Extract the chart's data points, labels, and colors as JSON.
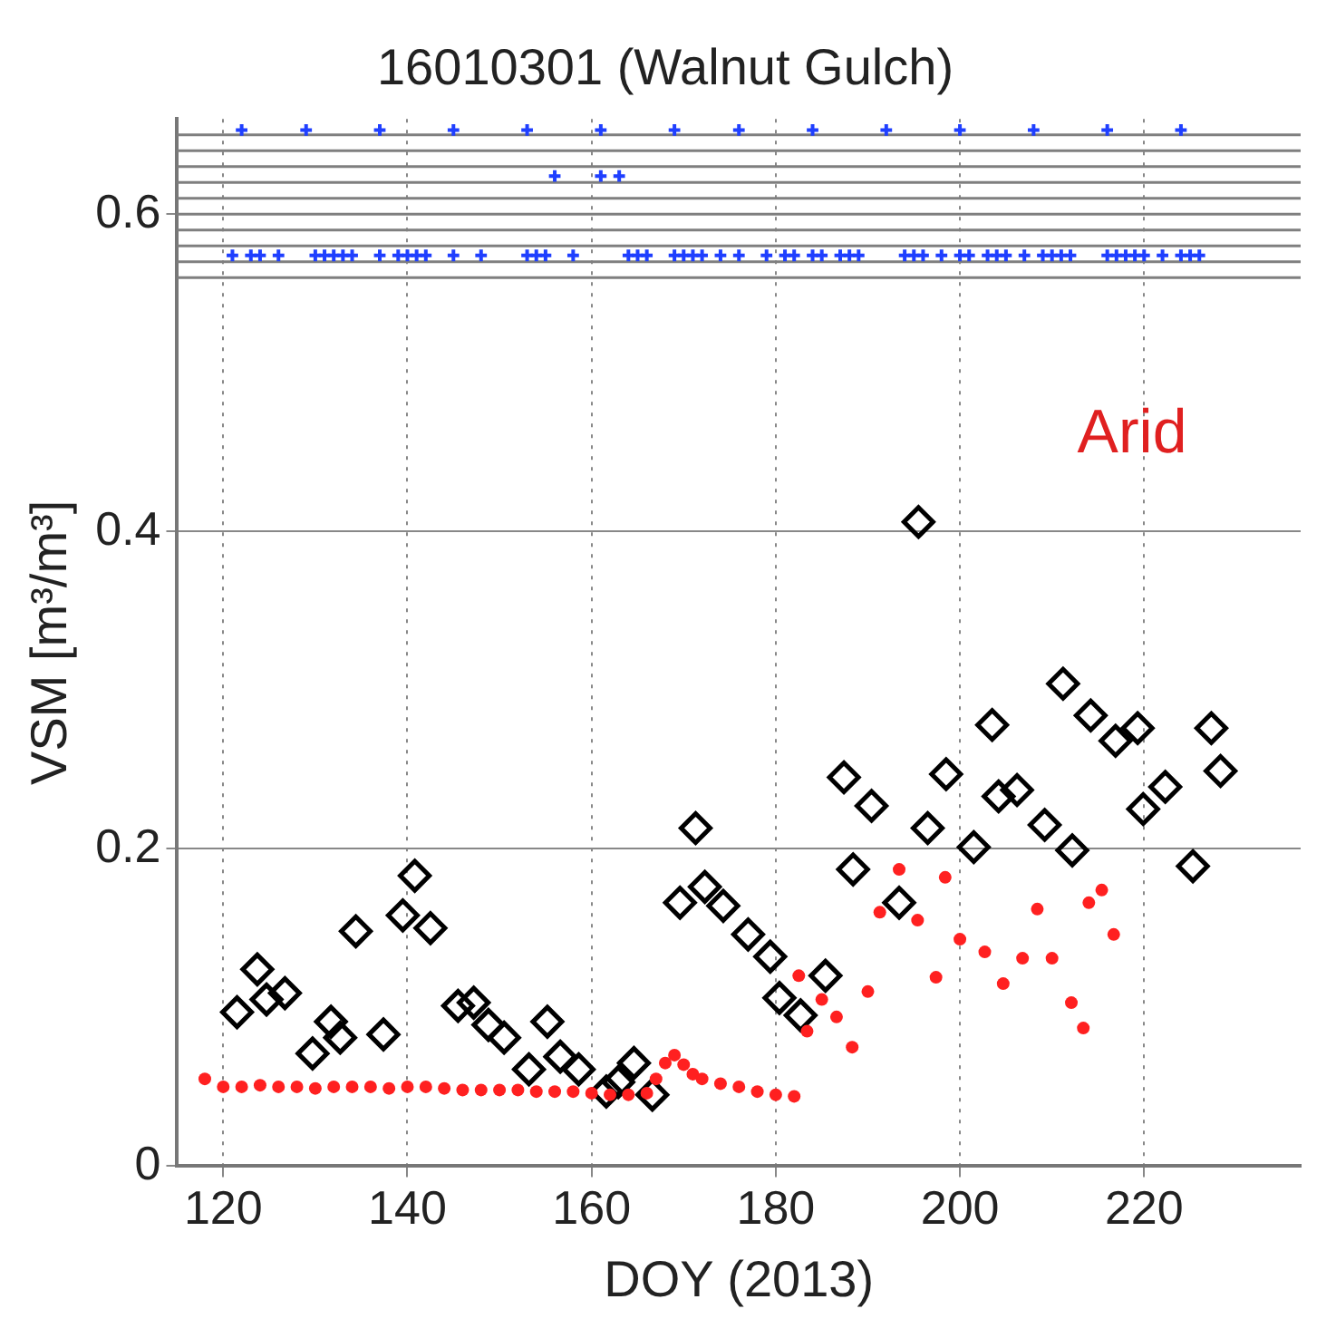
{
  "chart_data": {
    "type": "scatter",
    "title": "16010301 (Walnut Gulch)",
    "xlabel": "DOY (2013)",
    "ylabel": "VSM [m³/m³]",
    "xlim": [
      115,
      237
    ],
    "ylim": [
      0,
      0.66
    ],
    "xticks": [
      120,
      140,
      160,
      180,
      200,
      220
    ],
    "yticks": [
      0,
      0.2,
      0.4,
      0.6
    ],
    "grid": true,
    "legend": false,
    "annotations": [
      "Arid"
    ],
    "ref_lines": [
      {
        "axis": "y",
        "value": 0.56,
        "color": "#7f7f7f"
      },
      {
        "axis": "y",
        "value": 0.57,
        "color": "#7f7f7f"
      },
      {
        "axis": "y",
        "value": 0.58,
        "color": "#7f7f7f"
      },
      {
        "axis": "y",
        "value": 0.59,
        "color": "#7f7f7f"
      },
      {
        "axis": "y",
        "value": 0.6,
        "color": "#7f7f7f"
      },
      {
        "axis": "y",
        "value": 0.61,
        "color": "#7f7f7f"
      },
      {
        "axis": "y",
        "value": 0.62,
        "color": "#7f7f7f"
      },
      {
        "axis": "y",
        "value": 0.63,
        "color": "#7f7f7f"
      },
      {
        "axis": "y",
        "value": 0.64,
        "color": "#7f7f7f"
      },
      {
        "axis": "y",
        "value": 0.65,
        "color": "#7f7f7f"
      }
    ],
    "series": [
      {
        "color": "#ff2020",
        "marker": "circle",
        "x": [
          118,
          120,
          122,
          124,
          126,
          128,
          130,
          132,
          134,
          136,
          138,
          140,
          142,
          144,
          146,
          148,
          150,
          152,
          154,
          156,
          158,
          160,
          162,
          164,
          166,
          167,
          168,
          169,
          170,
          171,
          172,
          174,
          176,
          178,
          180,
          182,
          182.5,
          183.4,
          185,
          186.6,
          188.3,
          190,
          191.3,
          193.4,
          195.4,
          197.4,
          198.4,
          200,
          202.7,
          204.7,
          206.8,
          208.4,
          210,
          212.1,
          213.4,
          214,
          215.4,
          216.7
        ],
        "values": [
          0.055,
          0.05,
          0.05,
          0.051,
          0.05,
          0.05,
          0.049,
          0.05,
          0.05,
          0.05,
          0.049,
          0.05,
          0.05,
          0.049,
          0.048,
          0.048,
          0.048,
          0.048,
          0.047,
          0.047,
          0.047,
          0.046,
          0.045,
          0.045,
          0.046,
          0.055,
          0.065,
          0.07,
          0.064,
          0.058,
          0.055,
          0.052,
          0.05,
          0.047,
          0.045,
          0.044,
          0.12,
          0.085,
          0.105,
          0.094,
          0.075,
          0.11,
          0.16,
          0.187,
          0.155,
          0.119,
          0.182,
          0.143,
          0.135,
          0.115,
          0.131,
          0.162,
          0.131,
          0.103,
          0.087,
          0.166,
          0.174,
          0.146
        ]
      },
      {
        "color": "#000000",
        "marker": "diamond",
        "x": [
          121.5,
          123.7,
          124.7,
          126.7,
          129.7,
          131.7,
          132.7,
          134.4,
          137.4,
          139.5,
          140.8,
          142.5,
          145.5,
          147.2,
          148.8,
          150.5,
          153.2,
          155.2,
          156.6,
          158.6,
          161.6,
          162.9,
          164.6,
          166.6,
          169.6,
          171.3,
          172.3,
          174.3,
          177,
          179.4,
          180.4,
          182.7,
          185.4,
          187.4,
          188.4,
          190.4,
          193.4,
          195.5,
          196.5,
          198.5,
          201.5,
          203.5,
          204.2,
          206.2,
          209.2,
          211.2,
          212.2,
          214.2,
          216.9,
          219.3,
          219.9,
          222.3,
          225.3,
          227.3,
          228.3
        ],
        "values": [
          0.097,
          0.124,
          0.105,
          0.109,
          0.071,
          0.091,
          0.081,
          0.148,
          0.083,
          0.158,
          0.183,
          0.15,
          0.101,
          0.103,
          0.089,
          0.081,
          0.061,
          0.091,
          0.069,
          0.061,
          0.047,
          0.053,
          0.065,
          0.045,
          0.166,
          0.213,
          0.176,
          0.164,
          0.146,
          0.132,
          0.106,
          0.095,
          0.12,
          0.245,
          0.187,
          0.227,
          0.166,
          0.406,
          0.213,
          0.247,
          0.201,
          0.278,
          0.233,
          0.237,
          0.215,
          0.304,
          0.199,
          0.284,
          0.268,
          0.276,
          0.225,
          0.239,
          0.189,
          0.276,
          0.249
        ]
      },
      {
        "color": "#1f3fff",
        "marker": "cross",
        "x": [
          122,
          129,
          137,
          145,
          153,
          161,
          169,
          176,
          184,
          192,
          200,
          208,
          216,
          224
        ],
        "values": [
          0.653,
          0.653,
          0.653,
          0.653,
          0.653,
          0.653,
          0.653,
          0.653,
          0.653,
          0.653,
          0.653,
          0.653,
          0.653,
          0.653
        ]
      },
      {
        "color": "#1f3fff",
        "marker": "cross",
        "x": [
          156,
          161,
          163
        ],
        "values": [
          0.624,
          0.624,
          0.624
        ]
      },
      {
        "color": "#1f3fff",
        "marker": "cross",
        "x": [
          121,
          123,
          124,
          126,
          130,
          131,
          132,
          133,
          134,
          137,
          139,
          140,
          141,
          142,
          145,
          148,
          153,
          154,
          155,
          158,
          164,
          165,
          166,
          169,
          170,
          171,
          172,
          174,
          176,
          179,
          181,
          182,
          184,
          185,
          187,
          188,
          189,
          194,
          195,
          196,
          198,
          200,
          201,
          203,
          204,
          205,
          207,
          209,
          210,
          211,
          212,
          216,
          217,
          218,
          219,
          220,
          222,
          224,
          225,
          226
        ],
        "values": [
          0.574,
          0.574,
          0.574,
          0.574,
          0.574,
          0.574,
          0.574,
          0.574,
          0.574,
          0.574,
          0.574,
          0.574,
          0.574,
          0.574,
          0.574,
          0.574,
          0.574,
          0.574,
          0.574,
          0.574,
          0.574,
          0.574,
          0.574,
          0.574,
          0.574,
          0.574,
          0.574,
          0.574,
          0.574,
          0.574,
          0.574,
          0.574,
          0.574,
          0.574,
          0.574,
          0.574,
          0.574,
          0.574,
          0.574,
          0.574,
          0.574,
          0.574,
          0.574,
          0.574,
          0.574,
          0.574,
          0.574,
          0.574,
          0.574,
          0.574,
          0.574,
          0.574,
          0.574,
          0.574,
          0.574,
          0.574,
          0.574,
          0.574,
          0.574,
          0.574
        ]
      }
    ]
  }
}
